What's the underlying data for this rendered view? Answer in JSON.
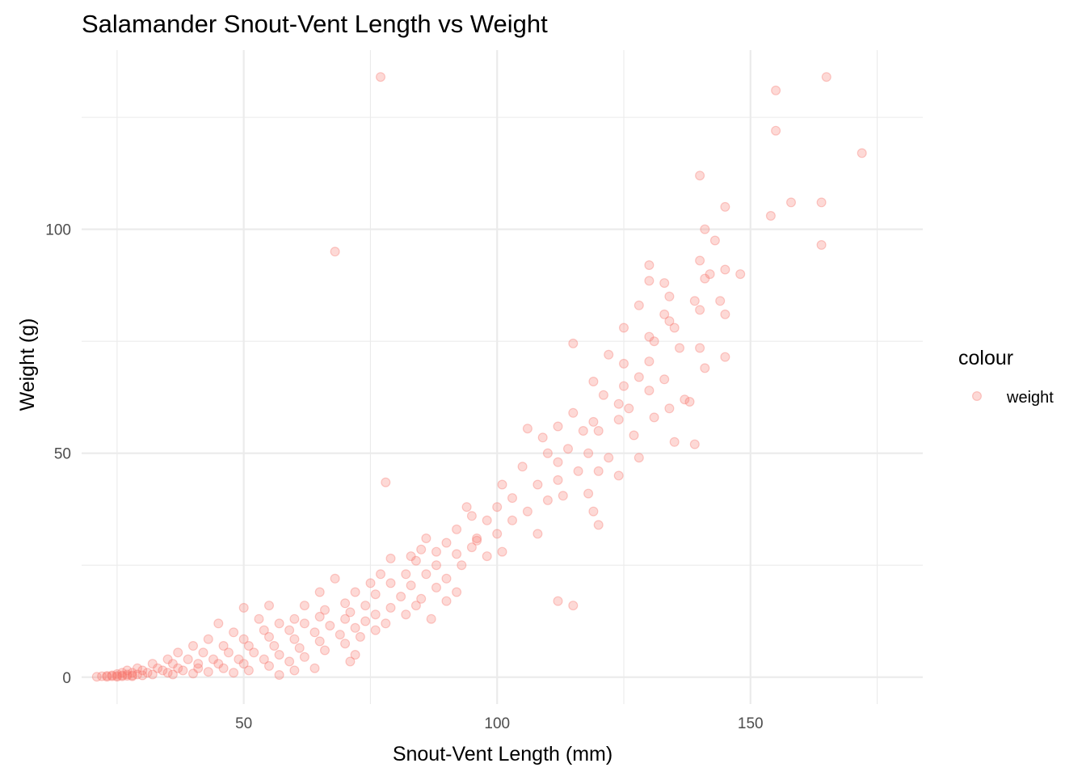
{
  "chart_data": {
    "type": "scatter",
    "title": "Salamander Snout-Vent Length vs Weight",
    "xlabel": "Snout-Vent Length (mm)",
    "ylabel": "Weight (g)",
    "xlim": [
      18,
      184
    ],
    "ylim": [
      -6,
      140
    ],
    "x_ticks": [
      50,
      100,
      150
    ],
    "x_tick_labels": [
      "50",
      "100",
      "150"
    ],
    "x_minor_ticks": [
      25,
      75,
      125,
      175
    ],
    "y_ticks": [
      0,
      50,
      100
    ],
    "y_tick_labels": [
      "0",
      "50",
      "100"
    ],
    "y_minor_ticks": [
      25,
      75,
      125
    ],
    "grid": true,
    "legend": {
      "title": "colour",
      "position": "right",
      "entries": [
        {
          "label": "weight",
          "color": "#F8766D"
        }
      ]
    },
    "point_color": "#F8766D",
    "point_alpha": 0.28,
    "series": [
      {
        "name": "weight",
        "points": [
          [
            77,
            134
          ],
          [
            155,
            131
          ],
          [
            165,
            134
          ],
          [
            155,
            122
          ],
          [
            172,
            117
          ],
          [
            140,
            112
          ],
          [
            158,
            106
          ],
          [
            164,
            106
          ],
          [
            145,
            105
          ],
          [
            154,
            103
          ],
          [
            141,
            100
          ],
          [
            143,
            97.5
          ],
          [
            164,
            96.5
          ],
          [
            68,
            95
          ],
          [
            130,
            92
          ],
          [
            140,
            93
          ],
          [
            148,
            90
          ],
          [
            142,
            90
          ],
          [
            145,
            91
          ],
          [
            141,
            89
          ],
          [
            130,
            88.5
          ],
          [
            133,
            88
          ],
          [
            134,
            85
          ],
          [
            139,
            84
          ],
          [
            144,
            84
          ],
          [
            128,
            83
          ],
          [
            140,
            82
          ],
          [
            133,
            81
          ],
          [
            145,
            81
          ],
          [
            134,
            79.5
          ],
          [
            135,
            78
          ],
          [
            125,
            78
          ],
          [
            130,
            76
          ],
          [
            115,
            74.5
          ],
          [
            131,
            75
          ],
          [
            140,
            73.5
          ],
          [
            136,
            73.5
          ],
          [
            145,
            71.5
          ],
          [
            122,
            72
          ],
          [
            130,
            70.5
          ],
          [
            125,
            70
          ],
          [
            141,
            69
          ],
          [
            128,
            67
          ],
          [
            133,
            66.5
          ],
          [
            119,
            66
          ],
          [
            125,
            65
          ],
          [
            130,
            64
          ],
          [
            121,
            63
          ],
          [
            137,
            62
          ],
          [
            124,
            61
          ],
          [
            134,
            60
          ],
          [
            138,
            61.5
          ],
          [
            126,
            60
          ],
          [
            115,
            59
          ],
          [
            131,
            58
          ],
          [
            119,
            57
          ],
          [
            124,
            57.5
          ],
          [
            112,
            56
          ],
          [
            117,
            55
          ],
          [
            120,
            55
          ],
          [
            127,
            54
          ],
          [
            106,
            55.5
          ],
          [
            109,
            53.5
          ],
          [
            135,
            52.5
          ],
          [
            139,
            52
          ],
          [
            114,
            51
          ],
          [
            118,
            50
          ],
          [
            122,
            49
          ],
          [
            110,
            50
          ],
          [
            112,
            48
          ],
          [
            128,
            49
          ],
          [
            105,
            47
          ],
          [
            116,
            46
          ],
          [
            120,
            46
          ],
          [
            124,
            45
          ],
          [
            112,
            44
          ],
          [
            108,
            43
          ],
          [
            101,
            43
          ],
          [
            118,
            41
          ],
          [
            113,
            40.5
          ],
          [
            103,
            40
          ],
          [
            110,
            39.5
          ],
          [
            94,
            38
          ],
          [
            100,
            38
          ],
          [
            106,
            37
          ],
          [
            119,
            37
          ],
          [
            95,
            36
          ],
          [
            98,
            35
          ],
          [
            103,
            35
          ],
          [
            120,
            34
          ],
          [
            92,
            33
          ],
          [
            100,
            32
          ],
          [
            96,
            31
          ],
          [
            108,
            32
          ],
          [
            86,
            31
          ],
          [
            90,
            30
          ],
          [
            95,
            29
          ],
          [
            85,
            28.5
          ],
          [
            88,
            28
          ],
          [
            92,
            27.5
          ],
          [
            98,
            27
          ],
          [
            101,
            28
          ],
          [
            83,
            27
          ],
          [
            79,
            26.5
          ],
          [
            84,
            26
          ],
          [
            88,
            25
          ],
          [
            93,
            25
          ],
          [
            77,
            23
          ],
          [
            82,
            23
          ],
          [
            86,
            23
          ],
          [
            90,
            22
          ],
          [
            68,
            22
          ],
          [
            75,
            21
          ],
          [
            79,
            21
          ],
          [
            83,
            20.5
          ],
          [
            88,
            20
          ],
          [
            92,
            19
          ],
          [
            65,
            19
          ],
          [
            72,
            19
          ],
          [
            76,
            18.5
          ],
          [
            81,
            18
          ],
          [
            85,
            17.5
          ],
          [
            90,
            17
          ],
          [
            112,
            17
          ],
          [
            115,
            16
          ],
          [
            55,
            16
          ],
          [
            62,
            16
          ],
          [
            70,
            16.5
          ],
          [
            74,
            16
          ],
          [
            79,
            15.5
          ],
          [
            84,
            16
          ],
          [
            50,
            15.5
          ],
          [
            66,
            15
          ],
          [
            71,
            14.5
          ],
          [
            76,
            14
          ],
          [
            82,
            14
          ],
          [
            87,
            13
          ],
          [
            53,
            13
          ],
          [
            60,
            13
          ],
          [
            65,
            13.5
          ],
          [
            70,
            13
          ],
          [
            74,
            12.5
          ],
          [
            78,
            12
          ],
          [
            45,
            12
          ],
          [
            57,
            12
          ],
          [
            62,
            12
          ],
          [
            67,
            11.5
          ],
          [
            72,
            11
          ],
          [
            76,
            10.5
          ],
          [
            48,
            10
          ],
          [
            54,
            10.5
          ],
          [
            59,
            10.5
          ],
          [
            64,
            10
          ],
          [
            69,
            9.5
          ],
          [
            73,
            9
          ],
          [
            43,
            8.5
          ],
          [
            50,
            8.5
          ],
          [
            55,
            9
          ],
          [
            60,
            8.5
          ],
          [
            65,
            8
          ],
          [
            70,
            7.5
          ],
          [
            40,
            7
          ],
          [
            46,
            7
          ],
          [
            51,
            7
          ],
          [
            56,
            7
          ],
          [
            61,
            6.5
          ],
          [
            66,
            6
          ],
          [
            72,
            5
          ],
          [
            37,
            5.5
          ],
          [
            42,
            5.5
          ],
          [
            47,
            5.5
          ],
          [
            52,
            5.5
          ],
          [
            57,
            5
          ],
          [
            62,
            4.5
          ],
          [
            71,
            3.5
          ],
          [
            35,
            4
          ],
          [
            39,
            4
          ],
          [
            44,
            4
          ],
          [
            49,
            4
          ],
          [
            54,
            4
          ],
          [
            59,
            3.5
          ],
          [
            64,
            2
          ],
          [
            32,
            3
          ],
          [
            36,
            3
          ],
          [
            41,
            3
          ],
          [
            45,
            3
          ],
          [
            50,
            3
          ],
          [
            55,
            2.5
          ],
          [
            60,
            1.5
          ],
          [
            29,
            2
          ],
          [
            33,
            2
          ],
          [
            37,
            2
          ],
          [
            41,
            2
          ],
          [
            46,
            2
          ],
          [
            51,
            1.5
          ],
          [
            57,
            0.5
          ],
          [
            27,
            1.5
          ],
          [
            30,
            1.5
          ],
          [
            34,
            1.5
          ],
          [
            38,
            1.5
          ],
          [
            43,
            1.2
          ],
          [
            48,
            1
          ],
          [
            26,
            1
          ],
          [
            28,
            1
          ],
          [
            31,
            1
          ],
          [
            35,
            1
          ],
          [
            40,
            0.8
          ],
          [
            25,
            0.7
          ],
          [
            27,
            0.6
          ],
          [
            29,
            0.6
          ],
          [
            32,
            0.6
          ],
          [
            36,
            0.6
          ],
          [
            24,
            0.4
          ],
          [
            26,
            0.4
          ],
          [
            28,
            0.4
          ],
          [
            30,
            0.4
          ],
          [
            23,
            0.3
          ],
          [
            25,
            0.3
          ],
          [
            27,
            0.3
          ],
          [
            22,
            0.2
          ],
          [
            24,
            0.2
          ],
          [
            26,
            0.2
          ],
          [
            28,
            0.2
          ],
          [
            21,
            0.1
          ],
          [
            23,
            0.1
          ],
          [
            25,
            0.1
          ],
          [
            78,
            43.5
          ],
          [
            96,
            30.5
          ]
        ]
      }
    ]
  }
}
